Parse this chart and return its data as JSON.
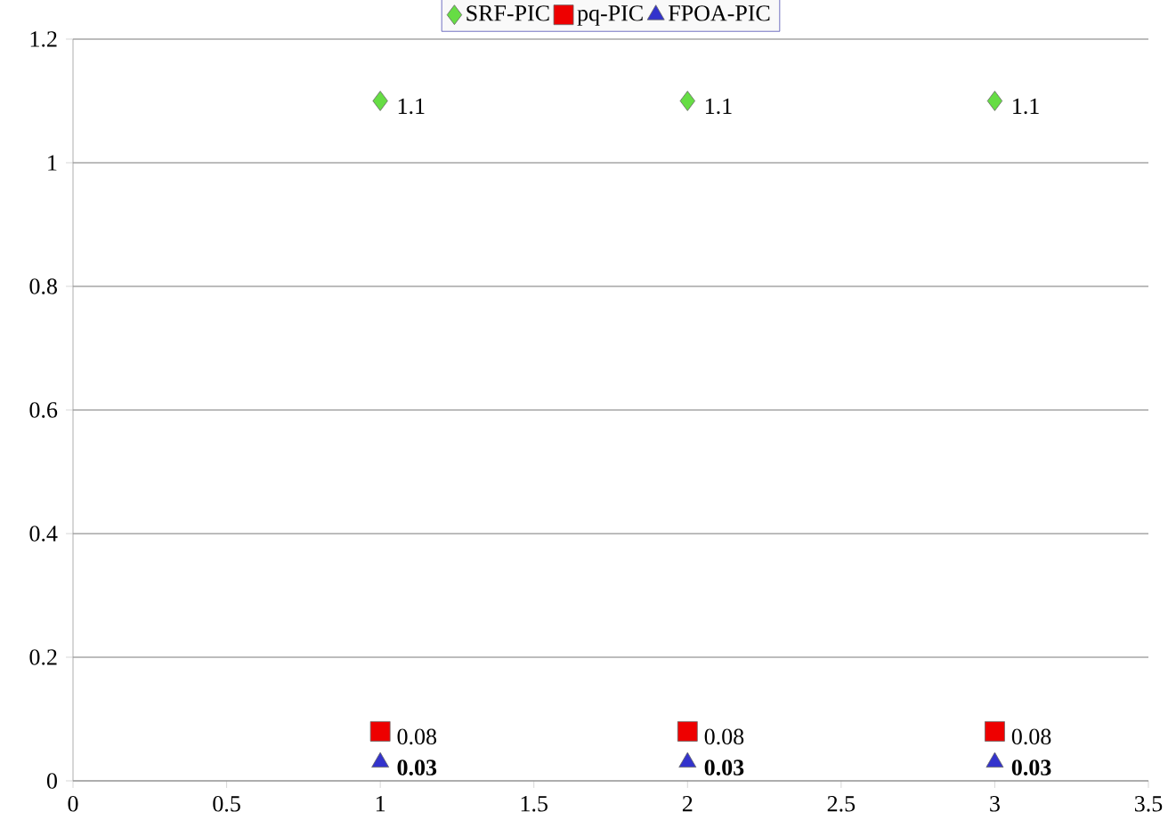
{
  "chart_data": {
    "type": "scatter",
    "x": [
      1,
      2,
      3
    ],
    "series": [
      {
        "name": "SRF-PIC",
        "color": "#66dd44",
        "marker": "diamond",
        "values": [
          1.1,
          1.1,
          1.1
        ],
        "value_labels": [
          "1.1",
          "1.1",
          "1.1"
        ]
      },
      {
        "name": "pq-PIC",
        "color": "#ee0000",
        "marker": "square",
        "values": [
          0.08,
          0.08,
          0.08
        ],
        "value_labels": [
          "0.08",
          "0.08",
          "0.08"
        ]
      },
      {
        "name": "FPOA-PIC",
        "color": "#3333cc",
        "marker": "triangle",
        "values": [
          0.03,
          0.03,
          0.03
        ],
        "value_labels": [
          "**0.03**",
          "**0.03**",
          "**0.03**"
        ]
      }
    ],
    "xlim": [
      0,
      3.5
    ],
    "xticks": [
      0,
      0.5,
      1,
      1.5,
      2,
      2.5,
      3,
      3.5
    ],
    "ylim": [
      0,
      1.2
    ],
    "yticks": [
      0,
      0.2,
      0.4,
      0.6,
      0.8,
      1,
      1.2
    ],
    "grid": "y",
    "legend": "top"
  }
}
